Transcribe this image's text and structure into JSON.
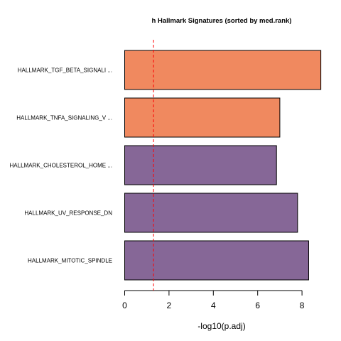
{
  "chart_data": {
    "type": "bar",
    "orientation": "horizontal",
    "title": "h Hallmark Signatures (sorted by med.rank)",
    "xlabel": "-log10(p.adj)",
    "ylabel": "",
    "categories": [
      "HALLMARK_TGF_BETA_SIGNALI ...",
      "HALLMARK_TNFA_SIGNALING_V ...",
      "HALLMARK_CHOLESTEROL_HOME ...",
      "HALLMARK_UV_RESPONSE_DN",
      "HALLMARK_MITOTIC_SPINDLE"
    ],
    "values": [
      8.85,
      7.0,
      6.85,
      7.8,
      8.3
    ],
    "bar_colors": [
      "#F0895F",
      "#F0895F",
      "#866797",
      "#866797",
      "#866797"
    ],
    "bar_border_color": "#000000",
    "xlim": [
      0,
      9
    ],
    "xticks": [
      0,
      2,
      4,
      6,
      8
    ],
    "threshold": {
      "value": 1.301,
      "color": "#FF0000",
      "style": "dashed"
    },
    "grid": false,
    "legend": "none"
  }
}
